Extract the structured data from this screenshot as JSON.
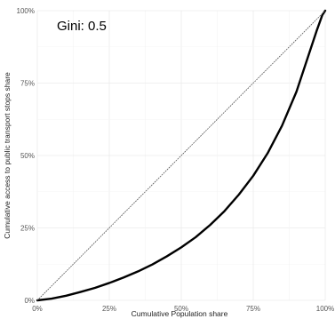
{
  "chart_data": {
    "type": "line",
    "title": "",
    "xlabel": "Cumulative Population share",
    "ylabel": "Cumulative access to public transport stops share",
    "xlim": [
      0,
      1
    ],
    "ylim": [
      0,
      1
    ],
    "x_ticks": [
      "0%",
      "25%",
      "50%",
      "75%",
      "100%"
    ],
    "y_ticks": [
      "0%",
      "25%",
      "50%",
      "75%",
      "100%"
    ],
    "grid": true,
    "legend": "none",
    "annotation": "Gini:  0.5",
    "series": [
      {
        "style": "solid-thick",
        "color": "#000000",
        "x": [
          0,
          0.05,
          0.1,
          0.15,
          0.2,
          0.25,
          0.3,
          0.35,
          0.4,
          0.45,
          0.5,
          0.55,
          0.6,
          0.65,
          0.7,
          0.75,
          0.8,
          0.85,
          0.9,
          0.95,
          0.97,
          0.99,
          1.0
        ],
        "y": [
          0,
          0.006,
          0.016,
          0.029,
          0.043,
          0.06,
          0.079,
          0.1,
          0.124,
          0.152,
          0.183,
          0.218,
          0.26,
          0.308,
          0.365,
          0.43,
          0.508,
          0.603,
          0.72,
          0.87,
          0.93,
          0.985,
          1.0
        ]
      },
      {
        "style": "dotted",
        "color": "#555555",
        "x": [
          0,
          1
        ],
        "y": [
          0,
          1
        ]
      }
    ]
  }
}
